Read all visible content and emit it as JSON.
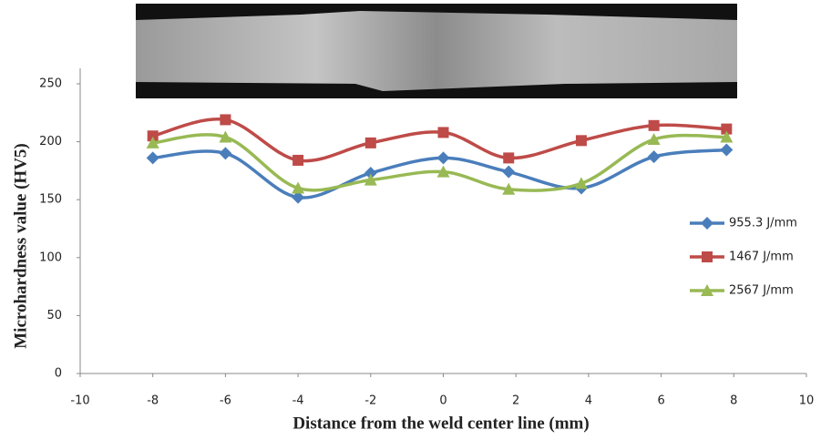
{
  "chart_data": {
    "type": "line",
    "x_label": "Distance from the weld center line (mm)",
    "y_label": "Microhardness value (HV5)",
    "x": [
      -8,
      -6,
      -4,
      -2,
      0,
      1.8,
      3.8,
      5.8,
      7.8
    ],
    "series": [
      {
        "name": "955.3 J/mm",
        "color": "#4a7ebb",
        "marker": "diamond",
        "values": [
          186,
          190,
          152,
          173,
          186,
          174,
          160,
          187,
          193
        ]
      },
      {
        "name": "1467 J/mm",
        "color": "#be4b48",
        "marker": "square",
        "values": [
          205,
          219,
          184,
          199,
          208,
          186,
          201,
          214,
          211
        ]
      },
      {
        "name": "2567 J/mm",
        "color": "#98b954",
        "marker": "triangle",
        "values": [
          199,
          204,
          160,
          167,
          174,
          159,
          164,
          202,
          204
        ]
      }
    ],
    "xlim": [
      -10,
      10
    ],
    "xticks": [
      -10,
      -8,
      -6,
      -4,
      -2,
      0,
      2,
      4,
      6,
      8,
      10
    ],
    "ylim": [
      0,
      250
    ],
    "yticks": [
      0,
      50,
      100,
      150,
      200,
      250
    ],
    "grid": false,
    "smooth": true,
    "legend": "right"
  }
}
